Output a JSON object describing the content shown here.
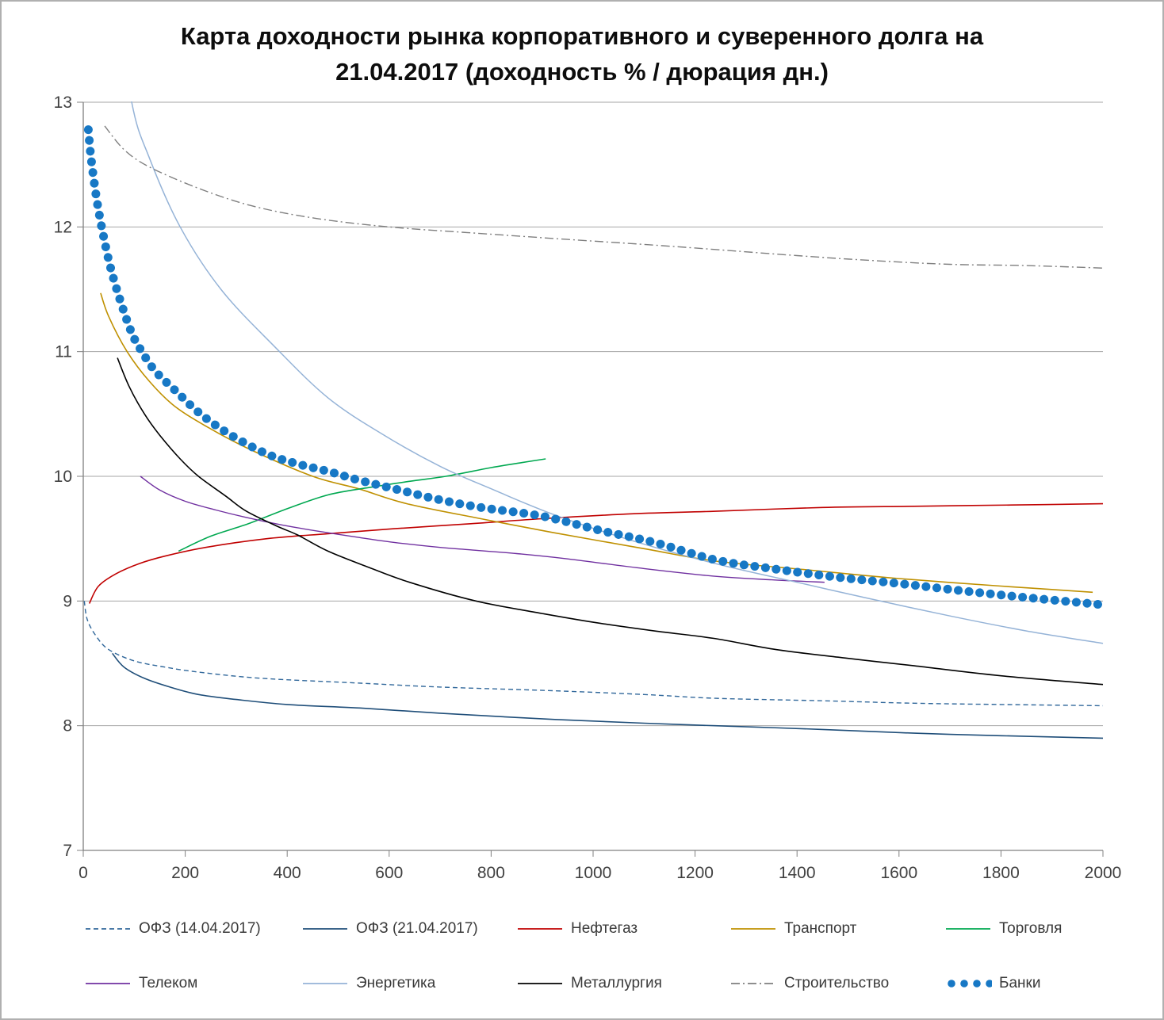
{
  "header": {
    "title_line1": "Карта доходности рынка корпоративного и суверенного долга на",
    "title_line2": "21.04.2017 (доходность % / дюрация дн.)"
  },
  "chart_data": {
    "type": "line",
    "title": "Карта доходности рынка корпоративного и суверенного долга на 21.04.2017 (доходность % / дюрация дн.)",
    "xlabel": "",
    "ylabel": "",
    "xlim": [
      0,
      2000
    ],
    "ylim": [
      7,
      13
    ],
    "x_ticks": [
      0,
      200,
      400,
      600,
      800,
      1000,
      1200,
      1400,
      1600,
      1800,
      2000
    ],
    "y_ticks": [
      7,
      8,
      9,
      10,
      11,
      12,
      13
    ],
    "grid": "horizontal",
    "legend_position": "bottom",
    "grid_color": "#a6a6a6",
    "axis_color": "#808080",
    "tick_label_color": "#404040",
    "series": [
      {
        "key": "ofz-14-04-2017",
        "name": "ОФЗ (14.04.2017)",
        "color": "#31689b",
        "style": "dashed",
        "width": 1.4,
        "points": [
          [
            2,
            9.0
          ],
          [
            8,
            8.85
          ],
          [
            25,
            8.72
          ],
          [
            50,
            8.61
          ],
          [
            100,
            8.52
          ],
          [
            160,
            8.47
          ],
          [
            226,
            8.43
          ],
          [
            350,
            8.38
          ],
          [
            550,
            8.34
          ],
          [
            700,
            8.31
          ],
          [
            925,
            8.28
          ],
          [
            1100,
            8.25
          ],
          [
            1240,
            8.22
          ],
          [
            1450,
            8.2
          ],
          [
            1630,
            8.18
          ],
          [
            1800,
            8.17
          ],
          [
            2000,
            8.16
          ]
        ]
      },
      {
        "key": "ofz-21-04-2017",
        "name": "ОФЗ (21.04.2017)",
        "color": "#1f4e79",
        "style": "solid",
        "width": 1.6,
        "points": [
          [
            57,
            8.58
          ],
          [
            80,
            8.47
          ],
          [
            120,
            8.38
          ],
          [
            170,
            8.31
          ],
          [
            226,
            8.25
          ],
          [
            300,
            8.21
          ],
          [
            400,
            8.17
          ],
          [
            548,
            8.14
          ],
          [
            700,
            8.1
          ],
          [
            925,
            8.05
          ],
          [
            1100,
            8.02
          ],
          [
            1240,
            8.0
          ],
          [
            1450,
            7.97
          ],
          [
            1630,
            7.94
          ],
          [
            1800,
            7.92
          ],
          [
            2000,
            7.9
          ]
        ]
      },
      {
        "key": "neftegaz",
        "name": "Нефтегаз",
        "color": "#c00000",
        "style": "solid",
        "width": 1.6,
        "points": [
          [
            12,
            8.98
          ],
          [
            30,
            9.12
          ],
          [
            65,
            9.22
          ],
          [
            110,
            9.3
          ],
          [
            160,
            9.36
          ],
          [
            240,
            9.43
          ],
          [
            360,
            9.5
          ],
          [
            480,
            9.54
          ],
          [
            610,
            9.58
          ],
          [
            760,
            9.62
          ],
          [
            900,
            9.66
          ],
          [
            1080,
            9.7
          ],
          [
            1240,
            9.72
          ],
          [
            1450,
            9.75
          ],
          [
            1630,
            9.76
          ],
          [
            1820,
            9.77
          ],
          [
            2000,
            9.78
          ]
        ]
      },
      {
        "key": "transport",
        "name": "Транспорт",
        "color": "#bf9000",
        "style": "solid",
        "width": 1.6,
        "points": [
          [
            34,
            11.47
          ],
          [
            50,
            11.28
          ],
          [
            86,
            11.0
          ],
          [
            130,
            10.76
          ],
          [
            180,
            10.56
          ],
          [
            250,
            10.38
          ],
          [
            330,
            10.21
          ],
          [
            450,
            10.0
          ],
          [
            540,
            9.9
          ],
          [
            635,
            9.78
          ],
          [
            780,
            9.66
          ],
          [
            920,
            9.55
          ],
          [
            1100,
            9.42
          ],
          [
            1240,
            9.32
          ],
          [
            1420,
            9.25
          ],
          [
            1600,
            9.18
          ],
          [
            1800,
            9.12
          ],
          [
            1980,
            9.07
          ]
        ]
      },
      {
        "key": "torgovlya",
        "name": "Торговля",
        "color": "#00a850",
        "style": "solid",
        "width": 1.6,
        "points": [
          [
            187,
            9.4
          ],
          [
            250,
            9.52
          ],
          [
            324,
            9.62
          ],
          [
            400,
            9.74
          ],
          [
            479,
            9.85
          ],
          [
            560,
            9.91
          ],
          [
            640,
            9.96
          ],
          [
            711,
            10.0
          ],
          [
            800,
            10.07
          ],
          [
            860,
            10.11
          ],
          [
            907,
            10.14
          ]
        ]
      },
      {
        "key": "telekom",
        "name": "Телеком",
        "color": "#7030a0",
        "style": "solid",
        "width": 1.4,
        "points": [
          [
            112,
            10.0
          ],
          [
            150,
            9.89
          ],
          [
            200,
            9.8
          ],
          [
            260,
            9.73
          ],
          [
            320,
            9.67
          ],
          [
            390,
            9.61
          ],
          [
            460,
            9.56
          ],
          [
            540,
            9.51
          ],
          [
            610,
            9.47
          ],
          [
            700,
            9.43
          ],
          [
            760,
            9.41
          ],
          [
            850,
            9.38
          ],
          [
            945,
            9.34
          ],
          [
            1100,
            9.26
          ],
          [
            1236,
            9.2
          ],
          [
            1350,
            9.17
          ],
          [
            1454,
            9.15
          ]
        ]
      },
      {
        "key": "energetika",
        "name": "Энергетика",
        "color": "#95b3d7",
        "style": "solid",
        "width": 1.5,
        "points": [
          [
            60,
            14.0
          ],
          [
            95,
            13.0
          ],
          [
            130,
            12.55
          ],
          [
            190,
            12.0
          ],
          [
            270,
            11.5
          ],
          [
            373,
            11.05
          ],
          [
            480,
            10.63
          ],
          [
            590,
            10.33
          ],
          [
            700,
            10.08
          ],
          [
            800,
            9.9
          ],
          [
            925,
            9.69
          ],
          [
            1080,
            9.48
          ],
          [
            1240,
            9.3
          ],
          [
            1400,
            9.15
          ],
          [
            1530,
            9.03
          ],
          [
            1700,
            8.88
          ],
          [
            1850,
            8.76
          ],
          [
            2000,
            8.66
          ]
        ]
      },
      {
        "key": "metallurgiya",
        "name": "Металлургия",
        "color": "#000000",
        "style": "solid",
        "width": 1.6,
        "points": [
          [
            67,
            10.95
          ],
          [
            90,
            10.72
          ],
          [
            120,
            10.5
          ],
          [
            150,
            10.33
          ],
          [
            190,
            10.14
          ],
          [
            226,
            10.0
          ],
          [
            280,
            9.84
          ],
          [
            320,
            9.72
          ],
          [
            380,
            9.6
          ],
          [
            420,
            9.53
          ],
          [
            480,
            9.4
          ],
          [
            560,
            9.27
          ],
          [
            640,
            9.15
          ],
          [
            770,
            9.0
          ],
          [
            900,
            8.9
          ],
          [
            1000,
            8.83
          ],
          [
            1120,
            8.76
          ],
          [
            1237,
            8.7
          ],
          [
            1360,
            8.61
          ],
          [
            1500,
            8.54
          ],
          [
            1630,
            8.48
          ],
          [
            1800,
            8.4
          ],
          [
            2000,
            8.33
          ]
        ]
      },
      {
        "key": "stroitelstvo",
        "name": "Строительство",
        "color": "#7f7f7f",
        "style": "dashdot",
        "width": 1.4,
        "points": [
          [
            42,
            12.81
          ],
          [
            80,
            12.62
          ],
          [
            130,
            12.48
          ],
          [
            226,
            12.31
          ],
          [
            330,
            12.17
          ],
          [
            454,
            12.07
          ],
          [
            600,
            12.0
          ],
          [
            770,
            11.95
          ],
          [
            950,
            11.9
          ],
          [
            1100,
            11.86
          ],
          [
            1237,
            11.82
          ],
          [
            1400,
            11.77
          ],
          [
            1550,
            11.73
          ],
          [
            1700,
            11.7
          ],
          [
            1850,
            11.69
          ],
          [
            2000,
            11.67
          ]
        ]
      },
      {
        "key": "banki",
        "name": "Банки",
        "color": "#1778c5",
        "style": "dots",
        "width": 11,
        "points": [
          [
            10,
            12.78
          ],
          [
            14,
            12.6
          ],
          [
            20,
            12.4
          ],
          [
            28,
            12.18
          ],
          [
            40,
            11.92
          ],
          [
            55,
            11.65
          ],
          [
            75,
            11.38
          ],
          [
            95,
            11.15
          ],
          [
            112,
            11.02
          ],
          [
            140,
            10.85
          ],
          [
            180,
            10.69
          ],
          [
            230,
            10.5
          ],
          [
            290,
            10.33
          ],
          [
            360,
            10.18
          ],
          [
            420,
            10.1
          ],
          [
            480,
            10.04
          ],
          [
            540,
            9.97
          ],
          [
            620,
            9.89
          ],
          [
            690,
            9.82
          ],
          [
            780,
            9.75
          ],
          [
            900,
            9.68
          ],
          [
            1020,
            9.56
          ],
          [
            1120,
            9.47
          ],
          [
            1240,
            9.33
          ],
          [
            1350,
            9.26
          ],
          [
            1480,
            9.19
          ],
          [
            1600,
            9.14
          ],
          [
            1750,
            9.07
          ],
          [
            1870,
            9.02
          ],
          [
            2000,
            8.97
          ]
        ]
      }
    ],
    "legend_rows": [
      [
        "ofz-14-04-2017",
        "ofz-21-04-2017",
        "neftegaz",
        "transport",
        "torgovlya"
      ],
      [
        "telekom",
        "energetika",
        "metallurgiya",
        "stroitelstvo",
        "banki"
      ]
    ]
  }
}
